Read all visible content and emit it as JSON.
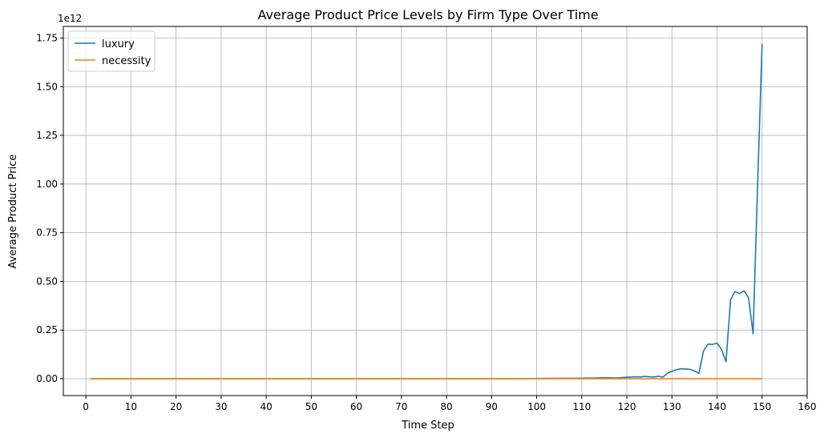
{
  "chart_data": {
    "type": "line",
    "title": "Average Product Price Levels by Firm Type Over Time",
    "xlabel": "Time Step",
    "ylabel": "Average Product Price",
    "y_offset_text": "1e12",
    "xlim": [
      -5,
      160
    ],
    "ylim": [
      -0.0865,
      1.8095
    ],
    "y_scale_note": "values in units of 1e12",
    "grid": true,
    "legend_position": "top-left",
    "x_ticks": [
      0,
      10,
      20,
      30,
      40,
      50,
      60,
      70,
      80,
      90,
      100,
      110,
      120,
      130,
      140,
      150,
      160
    ],
    "x_tick_labels": [
      "0",
      "10",
      "20",
      "30",
      "40",
      "50",
      "60",
      "70",
      "80",
      "90",
      "100",
      "110",
      "120",
      "130",
      "140",
      "150",
      "160"
    ],
    "y_ticks": [
      0.0,
      0.25,
      0.5,
      0.75,
      1.0,
      1.25,
      1.5,
      1.75
    ],
    "y_tick_labels": [
      "0.00",
      "0.25",
      "0.50",
      "0.75",
      "1.00",
      "1.25",
      "1.50",
      "1.75"
    ],
    "series": [
      {
        "name": "luxury",
        "color": "#1f77b4",
        "x": [
          1,
          95,
          100,
          105,
          108,
          110,
          113,
          115,
          118,
          120,
          121,
          122,
          123,
          124,
          125,
          126,
          127,
          128,
          129,
          130,
          131,
          132,
          133,
          134,
          135,
          136,
          137,
          138,
          139,
          140,
          141,
          142,
          143,
          144,
          145,
          146,
          147,
          148,
          149,
          150
        ],
        "y": [
          0.0,
          0.0,
          0.001,
          0.002,
          0.002,
          0.003,
          0.004,
          0.005,
          0.004,
          0.008,
          0.009,
          0.01,
          0.009,
          0.012,
          0.01,
          0.009,
          0.013,
          0.008,
          0.028,
          0.038,
          0.046,
          0.051,
          0.05,
          0.048,
          0.04,
          0.028,
          0.143,
          0.178,
          0.176,
          0.183,
          0.15,
          0.087,
          0.405,
          0.448,
          0.437,
          0.452,
          0.415,
          0.231,
          0.99,
          1.72
        ]
      },
      {
        "name": "necessity",
        "color": "#ff7f0e",
        "x": [
          1,
          20,
          40,
          60,
          80,
          100,
          120,
          140,
          150
        ],
        "y": [
          0.0,
          0.0,
          0.0,
          0.0,
          0.0,
          0.0,
          0.0,
          0.0,
          0.0
        ]
      }
    ]
  }
}
